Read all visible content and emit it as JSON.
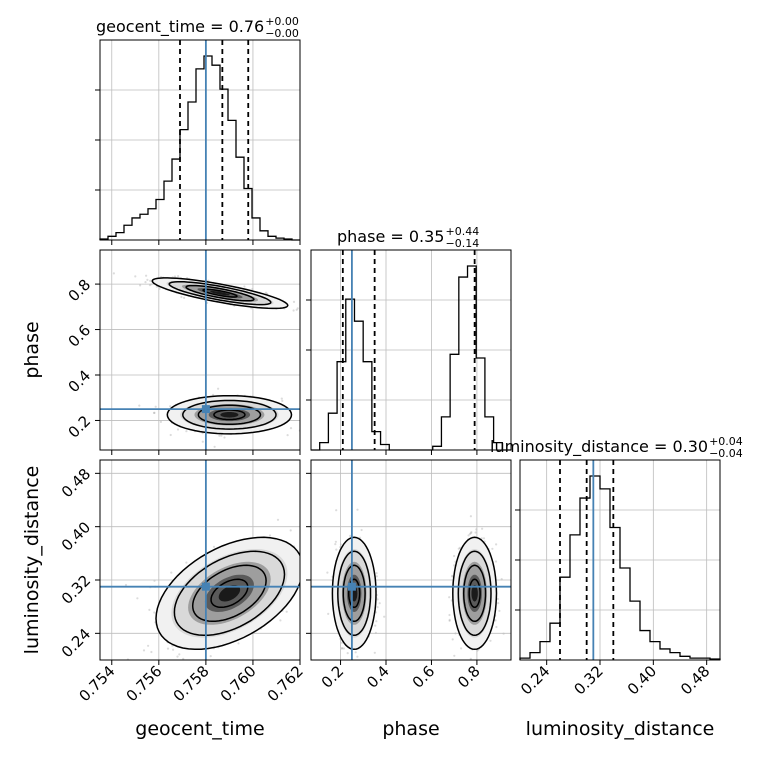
{
  "chart_data": {
    "type": "corner",
    "grid": true,
    "marker_color": "#4682b4",
    "parameters": [
      {
        "key": "geocent_time",
        "label": "geocent_time"
      },
      {
        "key": "phase",
        "label": "phase"
      },
      {
        "key": "luminosity_distance",
        "label": "luminosity_distance"
      }
    ],
    "ranges": {
      "geocent_time": [
        0.7535,
        0.762
      ],
      "phase": [
        0.07,
        0.95
      ],
      "luminosity_distance": [
        0.2,
        0.5
      ]
    },
    "ticks": {
      "geocent_time": {
        "values": [
          0.754,
          0.756,
          0.758,
          0.76,
          0.762
        ],
        "labels": [
          "0.754",
          "0.756",
          "0.758",
          "0.760",
          "0.762"
        ]
      },
      "phase": {
        "values": [
          0.2,
          0.4,
          0.6,
          0.8
        ],
        "labels": [
          "0.2",
          "0.4",
          "0.6",
          "0.8"
        ]
      },
      "luminosity_distance": {
        "values": [
          0.24,
          0.32,
          0.4,
          0.48
        ],
        "labels": [
          "0.24",
          "0.32",
          "0.40",
          "0.48"
        ]
      }
    },
    "titles": [
      {
        "name": "geocent_time = 0.76",
        "sup": "+0.00",
        "sub": "−0.00"
      },
      {
        "name": "phase = 0.35",
        "sup": "+0.44",
        "sub": "−0.14"
      },
      {
        "name": "luminosity_distance = 0.30",
        "sup": "+0.04",
        "sub": "−0.04"
      }
    ],
    "truths": {
      "geocent_time": 0.758,
      "phase": 0.25,
      "luminosity_distance": 0.31
    },
    "quantiles": {
      "geocent_time": [
        0.7569,
        0.7587,
        0.7598
      ],
      "phase": [
        0.21,
        0.35,
        0.79
      ],
      "luminosity_distance": [
        0.26,
        0.3,
        0.34
      ]
    },
    "histograms": {
      "geocent_time": {
        "edges_range": [
          0.7535,
          0.762
        ],
        "counts": [
          0.5,
          2,
          4,
          8,
          12,
          14,
          17,
          22,
          32,
          44,
          60,
          75,
          93,
          100,
          95,
          82,
          65,
          45,
          28,
          12,
          5,
          2,
          1,
          0.5,
          0
        ]
      },
      "phase": {
        "edges_range": [
          0.07,
          0.95
        ],
        "counts": [
          0,
          4,
          20,
          48,
          82,
          70,
          48,
          10,
          3,
          0,
          0,
          0,
          0,
          0,
          2,
          18,
          52,
          94,
          100,
          50,
          18,
          4,
          0
        ]
      },
      "luminosity_distance": {
        "edges_range": [
          0.2,
          0.5
        ],
        "counts": [
          1,
          4,
          10,
          20,
          45,
          68,
          88,
          100,
          93,
          72,
          50,
          32,
          16,
          10,
          6,
          4,
          2,
          1,
          1,
          0.5
        ]
      }
    },
    "clusters_2d": {
      "geocent_time_phase": [
        {
          "cx": 0.759,
          "cy": 0.225,
          "sx": 0.0011,
          "sy": 0.035,
          "rho": 0.0
        },
        {
          "cx": 0.7586,
          "cy": 0.76,
          "sx": 0.0012,
          "sy": 0.028,
          "rho": -0.8
        }
      ],
      "geocent_time_luminosity_distance": [
        {
          "cx": 0.759,
          "cy": 0.3,
          "sx": 0.0013,
          "sy": 0.035,
          "rho": 0.45
        }
      ],
      "phase_luminosity_distance": [
        {
          "cx": 0.26,
          "cy": 0.3,
          "sx": 0.04,
          "sy": 0.035,
          "rho": 0.0
        },
        {
          "cx": 0.79,
          "cy": 0.3,
          "sx": 0.04,
          "sy": 0.035,
          "rho": 0.0
        }
      ]
    }
  }
}
